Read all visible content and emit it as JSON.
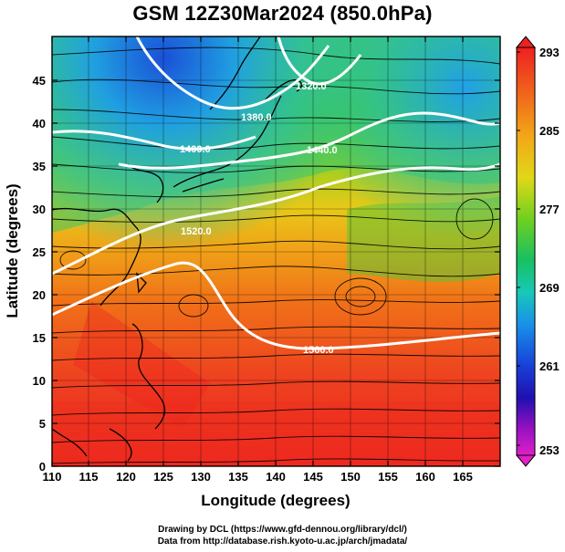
{
  "title": "GSM 12Z30Mar2024 (850.0hPa)",
  "map": {
    "xlabel": "Longitude (degrees)",
    "ylabel": "Latitude (degrees)",
    "lon_range": [
      110,
      170
    ],
    "lat_range": [
      0,
      50
    ],
    "lon_ticks": [
      "110",
      "115",
      "120",
      "125",
      "130",
      "135",
      "140",
      "145",
      "150",
      "155",
      "160",
      "165"
    ],
    "lat_ticks": [
      "0",
      "5",
      "10",
      "15",
      "20",
      "25",
      "30",
      "35",
      "40",
      "45"
    ],
    "field": "temperature (K)",
    "contours": [
      {
        "label": "1320.0"
      },
      {
        "label": "1380.0"
      },
      {
        "label": "1400.0"
      },
      {
        "label": "1440.0"
      },
      {
        "label": "1520.0"
      },
      {
        "label": "1560.0"
      }
    ]
  },
  "colorbar": {
    "labels": [
      "293",
      "285",
      "277",
      "269",
      "261",
      "253"
    ],
    "min": 253,
    "max": 293,
    "colors_top_to_bottom": [
      "#ee2020",
      "#f06a1a",
      "#f2a818",
      "#e8d818",
      "#80d020",
      "#20c040",
      "#18c8a0",
      "#1890e8",
      "#1840d8",
      "#2010b0",
      "#9010c0",
      "#e020c8"
    ]
  },
  "credits": {
    "line1": "Drawing by DCL (https://www.gfd-dennou.org/library/dcl/)",
    "line2": "Data from http://database.rish.kyoto-u.ac.jp/arch/jmadata/"
  }
}
